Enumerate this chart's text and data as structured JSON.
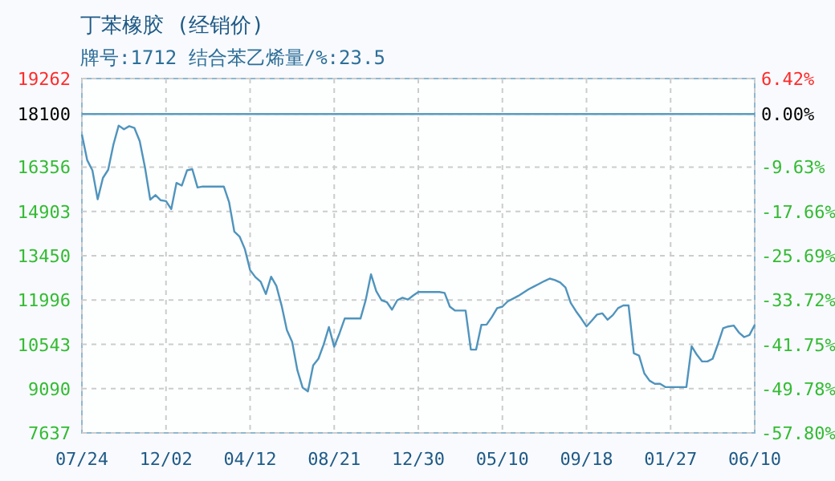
{
  "chart_data": {
    "type": "line",
    "title": "丁苯橡胶 (经销价)",
    "subtitle": "牌号:1712 结合苯乙烯量/%:23.5",
    "categories": [
      "07/24",
      null,
      null,
      null,
      null,
      null,
      null,
      null,
      null,
      null,
      null,
      null,
      null,
      null,
      null,
      null,
      "12/02",
      null,
      null,
      null,
      null,
      null,
      null,
      null,
      null,
      null,
      null,
      null,
      null,
      null,
      null,
      null,
      "04/12",
      null,
      null,
      null,
      null,
      null,
      null,
      null,
      null,
      null,
      null,
      null,
      null,
      null,
      null,
      null,
      "08/21",
      null,
      null,
      null,
      null,
      null,
      null,
      null,
      null,
      null,
      null,
      null,
      null,
      null,
      null,
      null,
      "12/30",
      null,
      null,
      null,
      null,
      null,
      null,
      null,
      null,
      null,
      null,
      null,
      null,
      null,
      null,
      null,
      "05/10",
      null,
      null,
      null,
      null,
      null,
      null,
      null,
      null,
      null,
      null,
      null,
      null,
      null,
      null,
      null,
      "09/18",
      null,
      null,
      null,
      null,
      null,
      null,
      null,
      null,
      null,
      null,
      null,
      null,
      null,
      null,
      null,
      "01/27",
      null,
      null,
      null,
      null,
      null,
      null,
      null,
      null,
      null,
      null,
      null,
      null,
      null,
      null,
      null,
      "06/10"
    ],
    "ylim": [
      7637,
      19262
    ],
    "yticks": [
      7637,
      9090,
      10543,
      11996,
      13450,
      14903,
      16356,
      18100,
      19262
    ],
    "y2lim": [
      -57.8,
      6.42
    ],
    "y2ticks": [
      {
        "value": -57.8,
        "label": "-57.80%"
      },
      {
        "value": -49.78,
        "label": "-49.78%"
      },
      {
        "value": -41.75,
        "label": "-41.75%"
      },
      {
        "value": -33.72,
        "label": "-33.72%"
      },
      {
        "value": -25.69,
        "label": "-25.69%"
      },
      {
        "value": -17.66,
        "label": "-17.66%"
      },
      {
        "value": -9.63,
        "label": "-9.63%"
      },
      {
        "value": 0,
        "label": "0.00%"
      },
      {
        "value": 6.42,
        "label": "6.42%"
      }
    ],
    "grid": true,
    "ref_lines": [
      {
        "axis": "y",
        "value": 18100,
        "color": "#5b9bc0"
      }
    ],
    "series": [
      {
        "color": "#4f94bd",
        "values": [
          17430,
          16590,
          16250,
          15300,
          16000,
          16270,
          17100,
          17720,
          17600,
          17700,
          17640,
          17210,
          16350,
          15290,
          15440,
          15270,
          15240,
          14980,
          15840,
          15750,
          16250,
          16290,
          15690,
          15720,
          15720,
          15720,
          15720,
          15720,
          15210,
          14240,
          14080,
          13670,
          12980,
          12750,
          12600,
          12190,
          12760,
          12460,
          11810,
          11010,
          10620,
          9690,
          9120,
          9000,
          9850,
          10070,
          10540,
          11110,
          10460,
          10900,
          11390,
          11390,
          11390,
          11390,
          12000,
          12840,
          12290,
          11990,
          11930,
          11680,
          11990,
          12070,
          12010,
          12140,
          12260,
          12260,
          12260,
          12260,
          12260,
          12230,
          11780,
          11650,
          11650,
          11650,
          10370,
          10370,
          11180,
          11190,
          11440,
          11730,
          11780,
          11950,
          12040,
          12130,
          12240,
          12350,
          12440,
          12530,
          12620,
          12700,
          12650,
          12570,
          12410,
          11900,
          11630,
          11390,
          11130,
          11320,
          11520,
          11560,
          11350,
          11500,
          11730,
          11820,
          11820,
          10250,
          10170,
          9590,
          9350,
          9250,
          9250,
          9140,
          9140,
          9140,
          9140,
          9140,
          10480,
          10200,
          9980,
          9980,
          10070,
          10550,
          11070,
          11130,
          11160,
          10930,
          10780,
          10850,
          11180
        ]
      }
    ]
  }
}
